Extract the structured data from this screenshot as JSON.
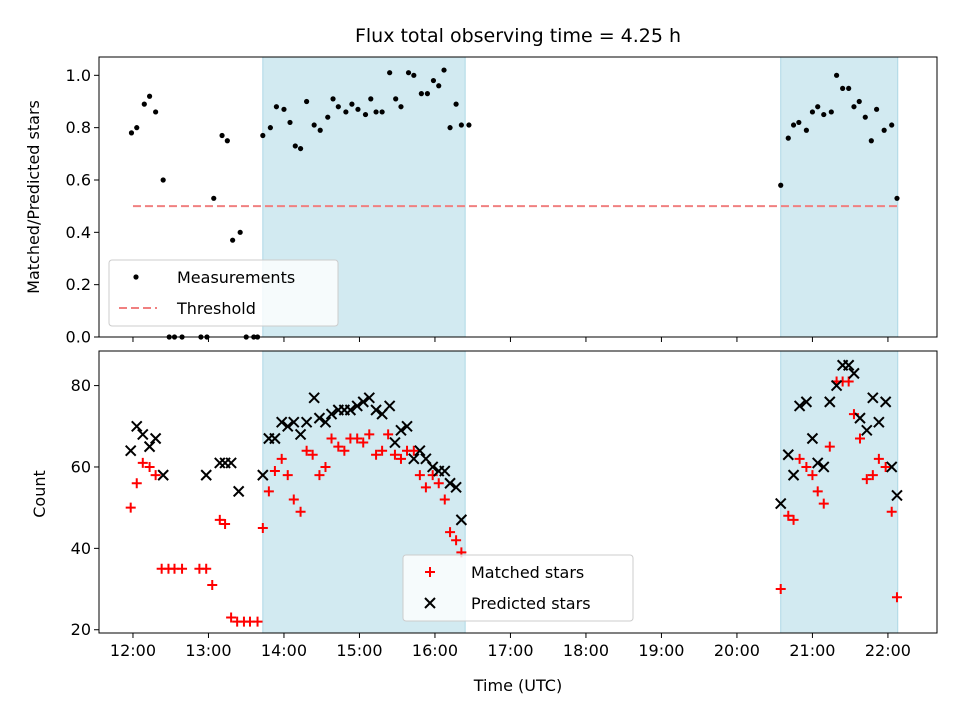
{
  "chart_data": {
    "type": "scatter",
    "title": "Flux total observing time = 4.25 h",
    "xlabel": "Time (UTC)",
    "xlim": [
      11.55,
      22.65
    ],
    "xticks": [
      12,
      13,
      14,
      15,
      16,
      17,
      18,
      19,
      20,
      21,
      22
    ],
    "xtick_labels": [
      "12:00",
      "13:00",
      "14:00",
      "15:00",
      "16:00",
      "17:00",
      "18:00",
      "19:00",
      "20:00",
      "21:00",
      "22:00"
    ],
    "shaded_regions": [
      [
        13.72,
        16.4
      ],
      [
        20.58,
        22.13
      ]
    ],
    "shade_color": "#add8e6",
    "panels": [
      {
        "ylabel": "Matched/Predicted stars",
        "ylim": [
          0,
          1.07
        ],
        "yticks": [
          0,
          0.2,
          0.4,
          0.6,
          0.8,
          1.0
        ],
        "ytick_labels": [
          "0.0",
          "0.2",
          "0.4",
          "0.6",
          "0.8",
          "1.0"
        ],
        "legend_loc": "lower left",
        "series": [
          {
            "name": "Measurements",
            "marker": "dot",
            "color": "#000000",
            "x": [
              11.98,
              12.05,
              12.15,
              12.22,
              12.3,
              12.4,
              12.48,
              12.55,
              12.65,
              12.9,
              12.98,
              13.07,
              13.18,
              13.25,
              13.32,
              13.42,
              13.5,
              13.6,
              13.65,
              13.72,
              13.82,
              13.9,
              14.0,
              14.08,
              14.15,
              14.22,
              14.3,
              14.4,
              14.48,
              14.58,
              14.65,
              14.72,
              14.82,
              14.9,
              14.98,
              15.08,
              15.15,
              15.22,
              15.3,
              15.4,
              15.48,
              15.55,
              15.65,
              15.72,
              15.82,
              15.9,
              15.98,
              16.05,
              16.12,
              16.2,
              16.28,
              16.35,
              16.45,
              20.58,
              20.68,
              20.75,
              20.82,
              20.92,
              21.0,
              21.07,
              21.15,
              21.25,
              21.32,
              21.4,
              21.48,
              21.55,
              21.62,
              21.7,
              21.78,
              21.85,
              21.95,
              22.05,
              22.12
            ],
            "y": [
              0.78,
              0.8,
              0.89,
              0.92,
              0.86,
              0.6,
              0.0,
              0.0,
              0.0,
              0.0,
              0.0,
              0.53,
              0.77,
              0.75,
              0.37,
              0.4,
              0.0,
              0.0,
              0.0,
              0.77,
              0.8,
              0.88,
              0.87,
              0.82,
              0.73,
              0.72,
              0.9,
              0.81,
              0.79,
              0.84,
              0.91,
              0.88,
              0.86,
              0.89,
              0.87,
              0.85,
              0.91,
              0.86,
              0.86,
              1.01,
              0.91,
              0.88,
              1.01,
              1.0,
              0.93,
              0.93,
              0.98,
              0.96,
              1.02,
              0.8,
              0.89,
              0.81,
              0.81,
              0.58,
              0.76,
              0.81,
              0.82,
              0.79,
              0.86,
              0.88,
              0.85,
              0.86,
              1.0,
              0.95,
              0.95,
              0.88,
              0.9,
              0.84,
              0.75,
              0.87,
              0.79,
              0.81,
              0.53
            ]
          },
          {
            "name": "Threshold",
            "marker": "dashed-line",
            "color": "#f08080",
            "x": [
              12.0,
              22.12
            ],
            "y": [
              0.5,
              0.5
            ]
          }
        ]
      },
      {
        "ylabel": "Count",
        "ylim": [
          19.2,
          88.5
        ],
        "yticks": [
          20,
          40,
          60,
          80
        ],
        "ytick_labels": [
          "20",
          "40",
          "60",
          "80"
        ],
        "legend_loc": "lower center",
        "series": [
          {
            "name": "Matched stars",
            "marker": "plus",
            "color": "#ff0000",
            "x": [
              11.97,
              12.05,
              12.13,
              12.22,
              12.3,
              12.38,
              12.47,
              12.55,
              12.65,
              12.88,
              12.97,
              13.05,
              13.15,
              13.22,
              13.3,
              13.38,
              13.47,
              13.55,
              13.65,
              13.72,
              13.8,
              13.88,
              13.97,
              14.05,
              14.13,
              14.22,
              14.3,
              14.38,
              14.47,
              14.55,
              14.63,
              14.72,
              14.8,
              14.88,
              14.97,
              15.05,
              15.13,
              15.22,
              15.3,
              15.38,
              15.47,
              15.55,
              15.63,
              15.72,
              15.8,
              15.88,
              15.97,
              16.05,
              16.13,
              16.2,
              16.28,
              16.35,
              20.58,
              20.68,
              20.75,
              20.83,
              20.92,
              21.0,
              21.07,
              21.15,
              21.23,
              21.32,
              21.4,
              21.48,
              21.55,
              21.63,
              21.72,
              21.8,
              21.88,
              21.97,
              22.05,
              22.12
            ],
            "y": [
              50,
              56,
              61,
              60,
              58,
              35,
              35,
              35,
              35,
              35,
              35,
              31,
              47,
              46,
              23,
              22,
              22,
              22,
              22,
              45,
              54,
              59,
              62,
              58,
              52,
              49,
              64,
              63,
              58,
              60,
              67,
              65,
              64,
              67,
              67,
              66,
              68,
              63,
              64,
              68,
              63,
              62,
              64,
              64,
              58,
              55,
              58,
              56,
              52,
              44,
              42,
              39,
              30,
              48,
              47,
              62,
              60,
              58,
              54,
              51,
              65,
              81,
              81,
              81,
              73,
              67,
              57,
              58,
              62,
              60,
              49,
              28
            ]
          },
          {
            "name": "Predicted stars",
            "marker": "x",
            "color": "#000000",
            "x": [
              11.97,
              12.05,
              12.13,
              12.22,
              12.3,
              12.4,
              12.97,
              13.15,
              13.22,
              13.3,
              13.4,
              13.72,
              13.8,
              13.88,
              13.97,
              14.05,
              14.13,
              14.22,
              14.3,
              14.4,
              14.47,
              14.55,
              14.63,
              14.72,
              14.8,
              14.88,
              14.97,
              15.05,
              15.13,
              15.22,
              15.3,
              15.4,
              15.47,
              15.55,
              15.63,
              15.72,
              15.8,
              15.88,
              15.97,
              16.05,
              16.13,
              16.2,
              16.28,
              16.35,
              20.58,
              20.68,
              20.75,
              20.83,
              20.92,
              21.0,
              21.07,
              21.15,
              21.23,
              21.32,
              21.4,
              21.48,
              21.55,
              21.63,
              21.72,
              21.8,
              21.88,
              21.97,
              22.05,
              22.12
            ],
            "y": [
              64,
              70,
              68,
              65,
              67,
              58,
              58,
              61,
              61,
              61,
              54,
              58,
              67,
              67,
              71,
              70,
              71,
              68,
              71,
              77,
              72,
              71,
              73,
              74,
              74,
              74,
              75,
              76,
              77,
              74,
              73,
              75,
              66,
              69,
              70,
              62,
              64,
              62,
              60,
              59,
              59,
              56,
              55,
              47,
              51,
              63,
              58,
              75,
              76,
              67,
              61,
              60,
              76,
              80,
              85,
              85,
              83,
              72,
              69,
              77,
              71,
              76,
              60,
              53
            ]
          }
        ]
      }
    ]
  }
}
